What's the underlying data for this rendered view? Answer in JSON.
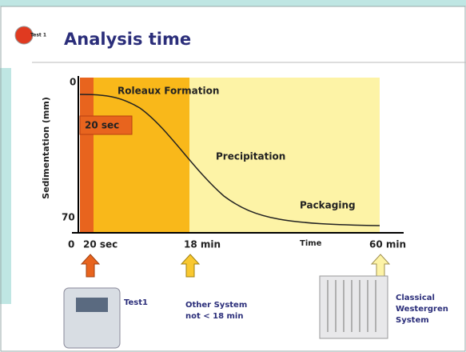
{
  "header": {
    "icon_label": "Test 1",
    "title": "Analysis time"
  },
  "diagram": {
    "y_axis": {
      "label": "Sedimentation (mm)",
      "top": "0",
      "bottom": "70"
    },
    "x_axis": {
      "origin": "0",
      "marks": [
        "20 sec",
        "18 min",
        "Time",
        "60 min"
      ]
    },
    "zone_box": "20 sec",
    "phases": [
      "Roleaux Formation",
      "Precipitation",
      "Packaging"
    ]
  },
  "systems": [
    {
      "lines": [
        "Test1"
      ]
    },
    {
      "lines": [
        "Other System",
        "not < 18 min"
      ]
    },
    {
      "lines": [
        "Classical",
        "Westergren",
        "System"
      ]
    }
  ]
}
